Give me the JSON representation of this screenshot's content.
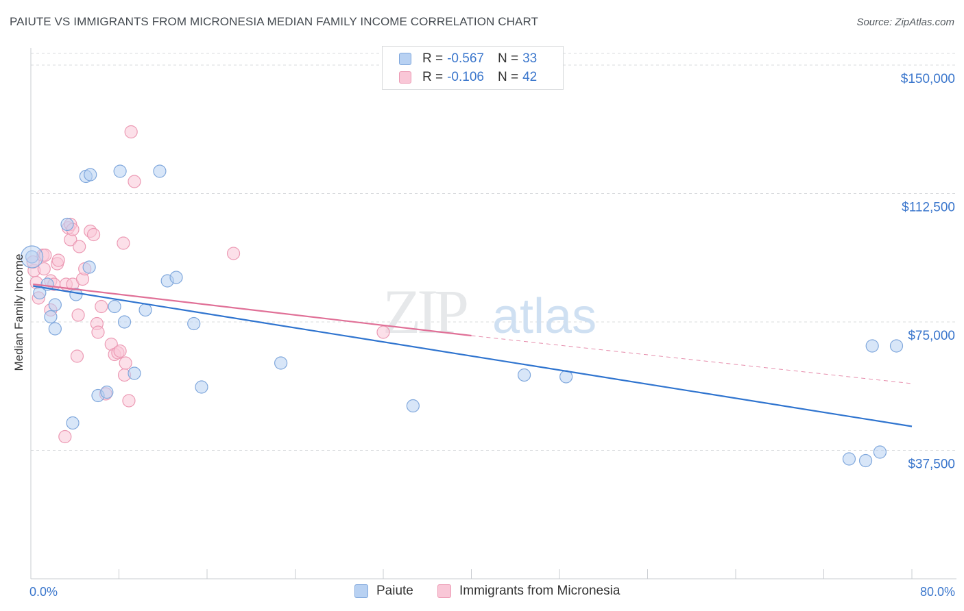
{
  "title": "PAIUTE VS IMMIGRANTS FROM MICRONESIA MEDIAN FAMILY INCOME CORRELATION CHART",
  "source": "Source: ZipAtlas.com",
  "watermark": {
    "zip": "ZIP",
    "atlas": "atlas"
  },
  "legend": {
    "r_label": "R =",
    "n_label": "N =",
    "rows": [
      {
        "r": "-0.567",
        "n": "33"
      },
      {
        "r": "-0.106",
        "n": "42"
      }
    ]
  },
  "colors": {
    "blue_fill": "#b8d1f2",
    "blue_stroke": "#7fa7dc",
    "blue_line": "#2f74cf",
    "pink_fill": "#f9c7d7",
    "pink_stroke": "#ec9ab4",
    "pink_line": "#e07097",
    "axis_text": "#3a76cc",
    "grid": "#d9dbde"
  },
  "chart_data": {
    "type": "scatter",
    "title": "PAIUTE VS IMMIGRANTS FROM MICRONESIA MEDIAN FAMILY INCOME CORRELATION CHART",
    "xlabel": "",
    "ylabel": "Median Family Income",
    "xlim": [
      0,
      80
    ],
    "ylim": [
      0,
      155000
    ],
    "x_tick_labels": [
      "0.0%",
      "80.0%"
    ],
    "y_ticks": [
      37500,
      75000,
      112500,
      150000
    ],
    "y_tick_labels": [
      "$37,500",
      "$75,000",
      "$112,500",
      "$150,000"
    ],
    "grid": true,
    "legend_position": "top-center",
    "series": [
      {
        "name": "Paiute",
        "color": "blue",
        "r": -0.567,
        "n": 33,
        "trend": {
          "x0": 0.2,
          "y0": 85500,
          "x1": 80,
          "y1": 44500,
          "dashed_from": null
        },
        "points": [
          [
            0.1,
            94000
          ],
          [
            0.8,
            83500
          ],
          [
            1.5,
            86000
          ],
          [
            1.8,
            76500
          ],
          [
            2.2,
            73000
          ],
          [
            2.2,
            80000
          ],
          [
            3.3,
            103500
          ],
          [
            3.8,
            45500
          ],
          [
            4.1,
            83000
          ],
          [
            5.0,
            117500
          ],
          [
            5.3,
            91000
          ],
          [
            5.4,
            118000
          ],
          [
            6.1,
            53500
          ],
          [
            6.9,
            54500
          ],
          [
            7.6,
            79500
          ],
          [
            8.1,
            119000
          ],
          [
            8.5,
            75000
          ],
          [
            9.4,
            60000
          ],
          [
            10.4,
            78500
          ],
          [
            11.7,
            119000
          ],
          [
            12.4,
            87000
          ],
          [
            13.2,
            88000
          ],
          [
            14.8,
            74500
          ],
          [
            15.5,
            56000
          ],
          [
            22.7,
            63000
          ],
          [
            34.7,
            50500
          ],
          [
            44.8,
            59500
          ],
          [
            48.6,
            59000
          ],
          [
            74.3,
            35000
          ],
          [
            75.8,
            34500
          ],
          [
            77.1,
            37000
          ],
          [
            76.4,
            68000
          ],
          [
            78.6,
            68000
          ]
        ]
      },
      {
        "name": "Immigrants from Micronesia",
        "color": "pink",
        "r": -0.106,
        "n": 42,
        "trend": {
          "x0": 0.2,
          "y0": 86000,
          "x1": 40,
          "y1": 71000,
          "dashed_to_x": 80,
          "dashed_to_y": 57000
        },
        "points": [
          [
            0.3,
            90000
          ],
          [
            0.5,
            86500
          ],
          [
            0.7,
            82000
          ],
          [
            1.1,
            94500
          ],
          [
            1.3,
            94500
          ],
          [
            1.8,
            78500
          ],
          [
            1.8,
            87000
          ],
          [
            2.1,
            86000
          ],
          [
            2.4,
            92000
          ],
          [
            2.5,
            93000
          ],
          [
            3.2,
            86000
          ],
          [
            3.6,
            99000
          ],
          [
            3.8,
            86000
          ],
          [
            4.2,
            65000
          ],
          [
            4.3,
            77000
          ],
          [
            4.7,
            87500
          ],
          [
            3.4,
            102500
          ],
          [
            3.6,
            103500
          ],
          [
            3.8,
            102000
          ],
          [
            4.4,
            97000
          ],
          [
            4.9,
            90500
          ],
          [
            5.4,
            101500
          ],
          [
            5.7,
            100500
          ],
          [
            6.0,
            74500
          ],
          [
            6.1,
            72000
          ],
          [
            6.4,
            79500
          ],
          [
            6.8,
            54000
          ],
          [
            7.3,
            68500
          ],
          [
            7.6,
            65500
          ],
          [
            7.9,
            66000
          ],
          [
            8.1,
            66500
          ],
          [
            8.5,
            59500
          ],
          [
            8.6,
            63000
          ],
          [
            8.9,
            52000
          ],
          [
            8.4,
            98000
          ],
          [
            9.1,
            130500
          ],
          [
            9.4,
            116000
          ],
          [
            18.4,
            95000
          ],
          [
            32.0,
            72000
          ],
          [
            3.1,
            41500
          ],
          [
            0.2,
            92500
          ],
          [
            1.2,
            90500
          ]
        ]
      }
    ]
  }
}
